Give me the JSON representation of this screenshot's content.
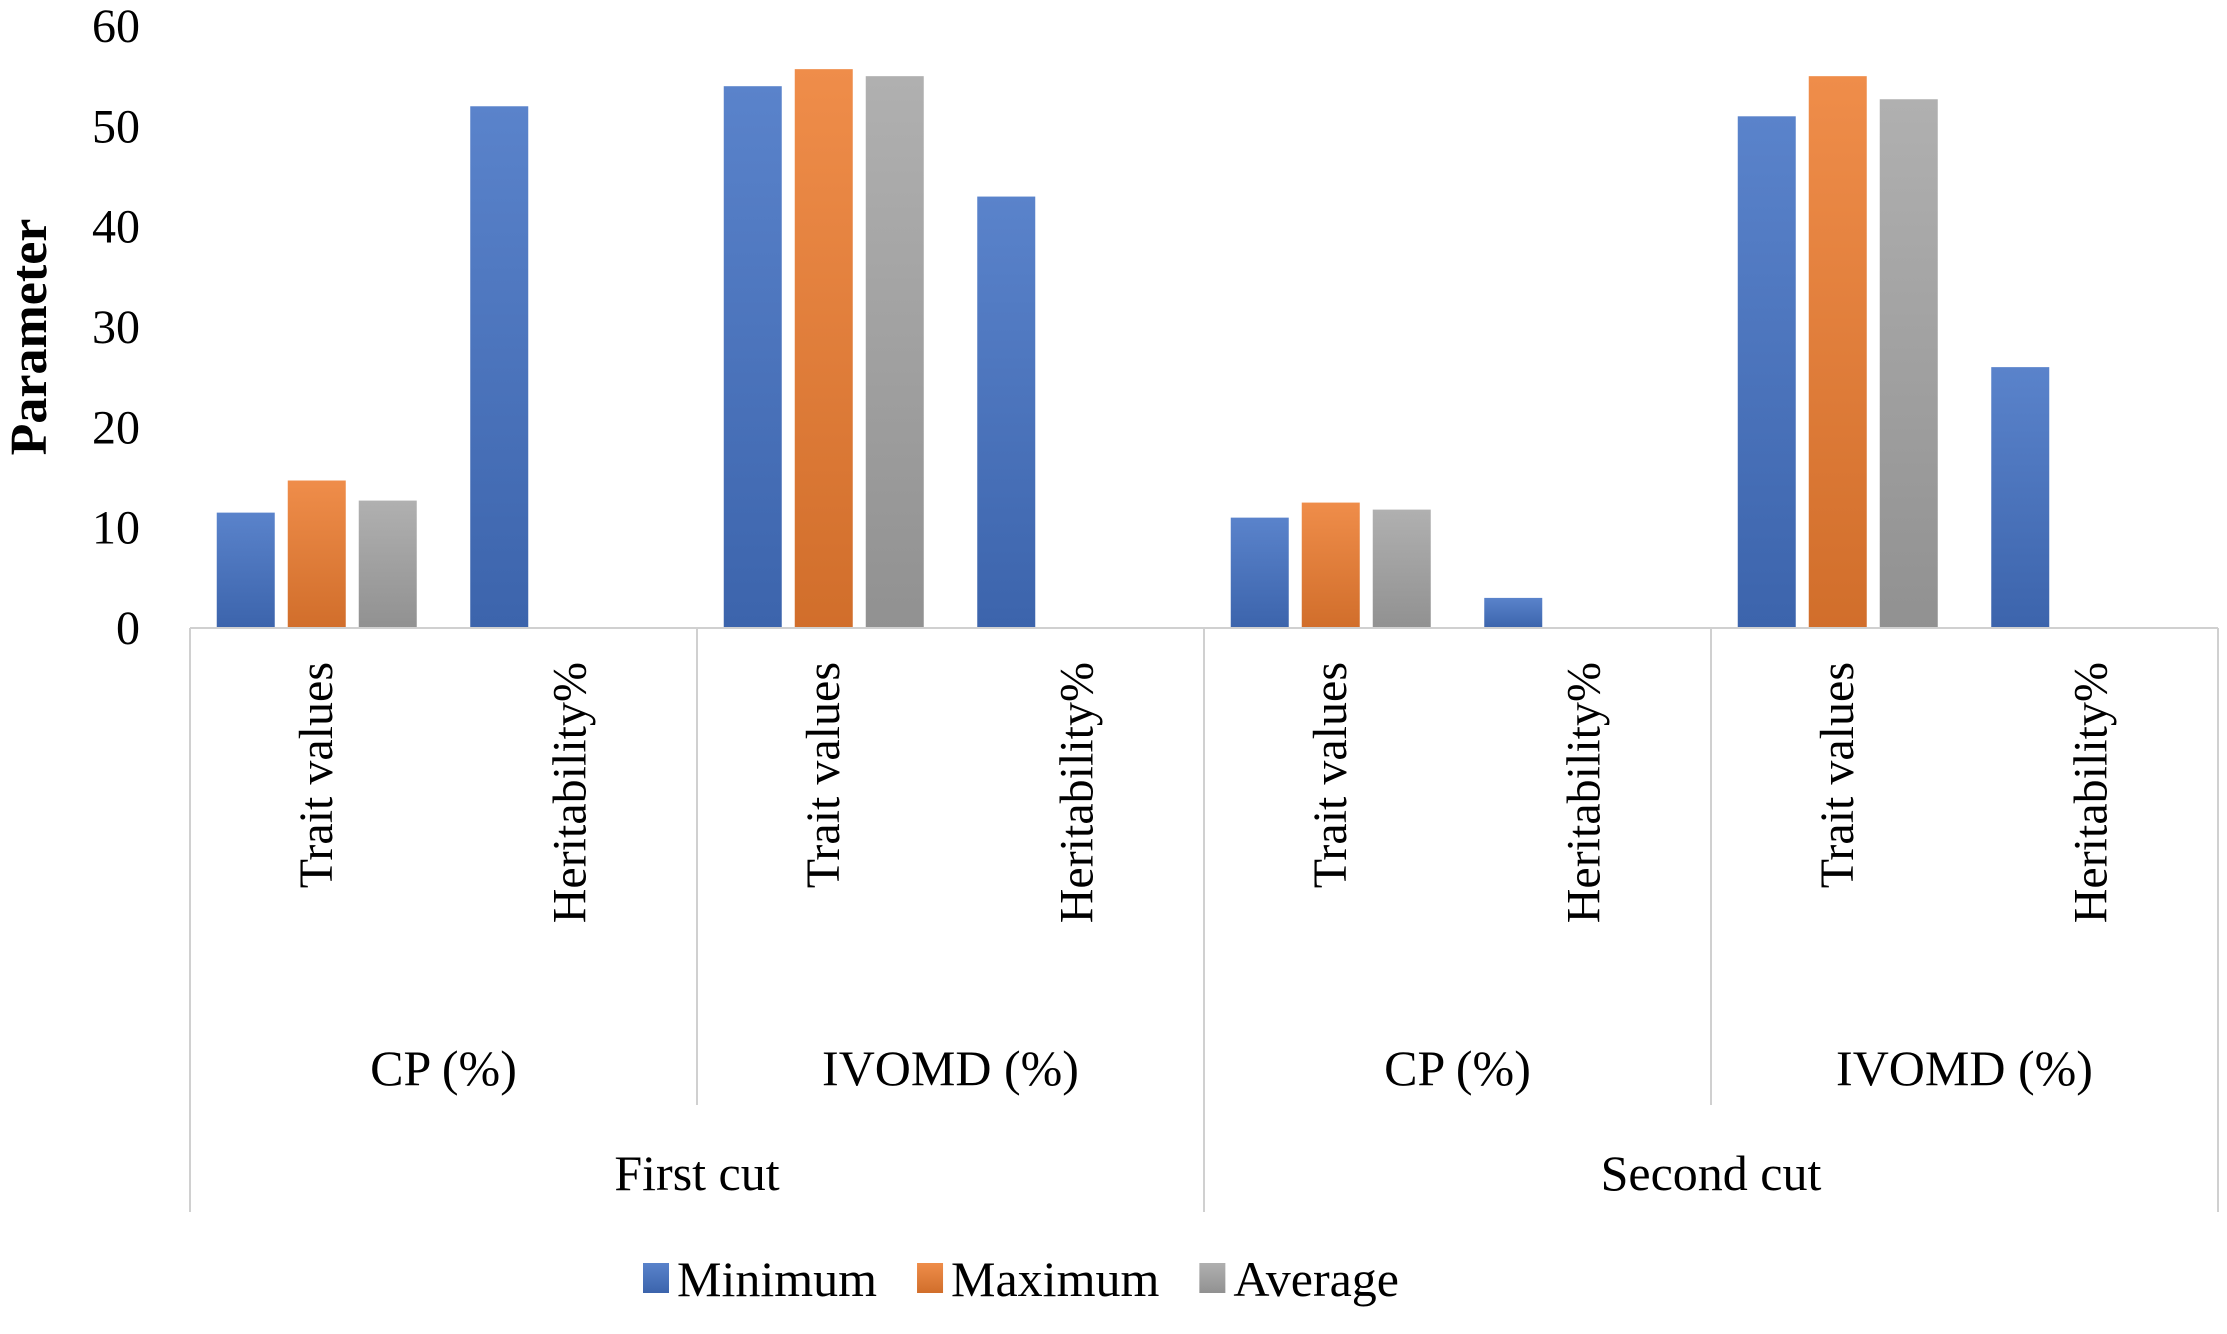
{
  "chart_data": {
    "type": "bar",
    "ylabel": "Parameter",
    "xlabel": "",
    "title": "",
    "ylim": [
      0,
      60
    ],
    "y_ticks": [
      "0",
      "10",
      "20",
      "30",
      "40",
      "50",
      "60"
    ],
    "grid": false,
    "legend_position": "bottom-center",
    "outer_groups": [
      "First cut",
      "Second cut"
    ],
    "middle_groups": [
      "CP (%)",
      "IVOMD (%)",
      "CP (%)",
      "IVOMD (%)"
    ],
    "categories": [
      "Trait values",
      "Heritability%",
      "Trait values",
      "Heritability%",
      "Trait values",
      "Heritability%",
      "Trait values",
      "Heritability%"
    ],
    "series": [
      {
        "name": "Minimum",
        "color": "#4472C4",
        "values": [
          11.5,
          52,
          54,
          43,
          11,
          3,
          51,
          26
        ]
      },
      {
        "name": "Maximum",
        "color": "#ED7D31",
        "values": [
          14.7,
          null,
          55.7,
          null,
          12.5,
          null,
          55,
          null
        ]
      },
      {
        "name": "Average",
        "color": "#A5A5A5",
        "values": [
          12.7,
          null,
          55,
          null,
          11.8,
          null,
          52.7,
          null
        ]
      }
    ]
  }
}
